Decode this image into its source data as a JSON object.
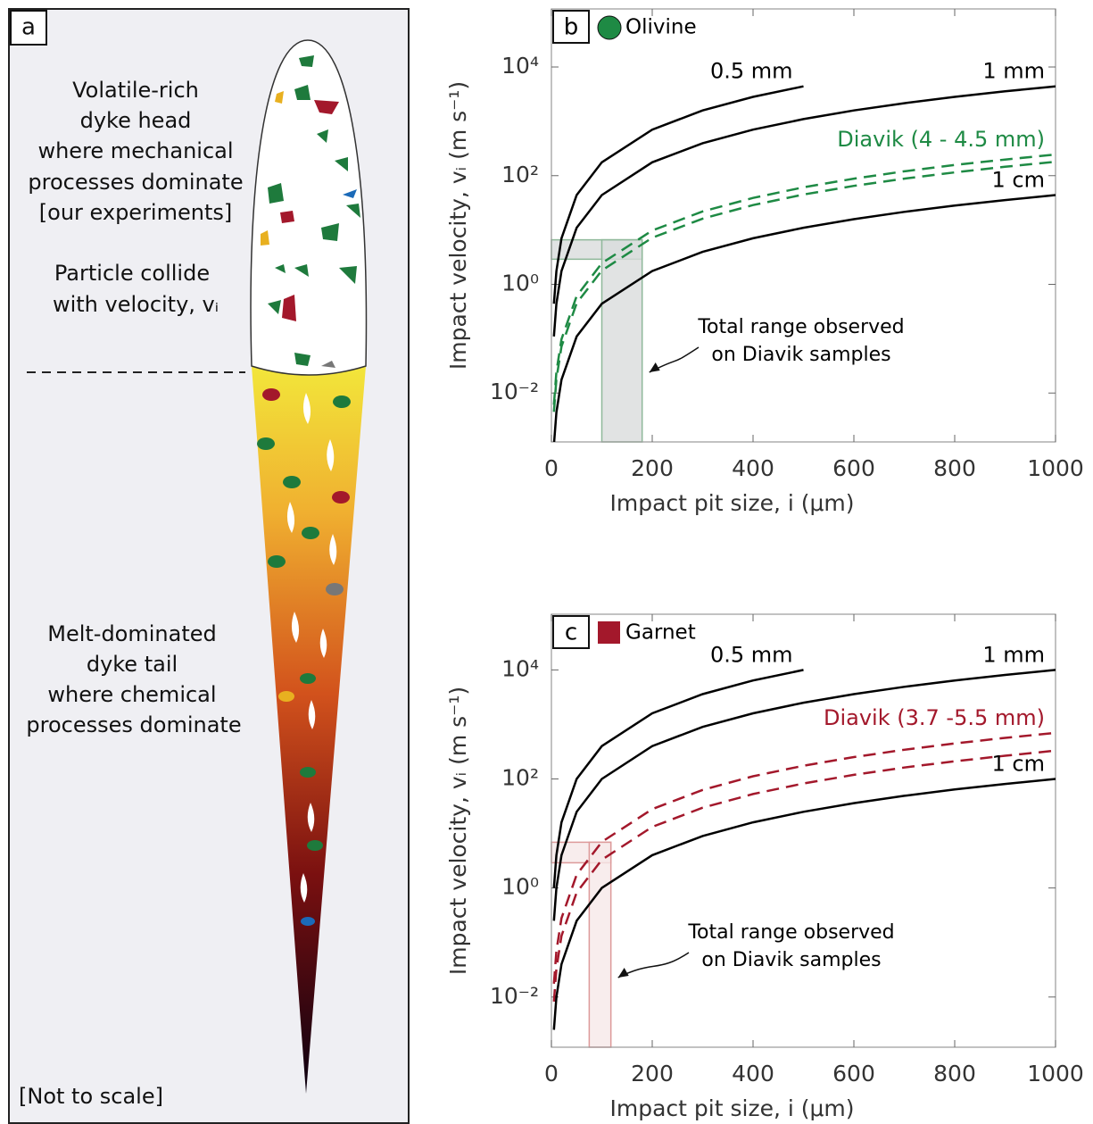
{
  "diagram": {
    "panel": "a",
    "head_text": [
      "Volatile-rich",
      "dyke head",
      "where mechanical",
      "processes dominate",
      "[our experiments]"
    ],
    "collide_text": [
      "Particle collide",
      "with velocity, vᵢ"
    ],
    "tail_text": [
      "Melt-dominated",
      "dyke tail",
      "where chemical",
      "processes dominate"
    ],
    "note": "[Not to scale]"
  },
  "chart_data": [
    {
      "type": "line",
      "panel": "b",
      "legend": {
        "name": "Olivine",
        "color": "#1e8a44",
        "marker": "circle"
      },
      "xlabel": "Impact pit size, i (μm)",
      "ylabel": "Impact velocity, vᵢ (m s⁻¹)",
      "ylog": true,
      "xlim": [
        0,
        1000
      ],
      "xticks": [
        0,
        200,
        400,
        600,
        800,
        1000
      ],
      "ylim": [
        0.00126,
        117000
      ],
      "yticks": [
        {
          "value": 0.01,
          "label": "10⁻²"
        },
        {
          "value": 1,
          "label": "10⁰"
        },
        {
          "value": 100,
          "label": "10²"
        },
        {
          "value": 10000,
          "label": "10⁴"
        }
      ],
      "x": [
        5,
        10,
        20,
        50,
        100,
        200,
        300,
        400,
        500,
        600,
        700,
        800,
        900,
        1000
      ],
      "series": [
        {
          "name": "0.5 mm",
          "color": "#000000",
          "values": [
            0.44,
            1.76,
            7.04,
            44,
            176,
            704,
            1584,
            2816,
            4400,
            null,
            null,
            null,
            null,
            null
          ]
        },
        {
          "name": "1 mm",
          "color": "#000000",
          "values": [
            0.11,
            0.44,
            1.76,
            11,
            44,
            176,
            396,
            704,
            1100,
            1584,
            2156,
            2816,
            3564,
            4400
          ]
        },
        {
          "name": "Diavik (4 - 4.5 mm)",
          "color": "#1e8a44",
          "dashed": true,
          "low": [
            0.0045,
            0.018,
            0.072,
            0.45,
            1.8,
            7.2,
            16.2,
            28.8,
            45,
            64.8,
            88.2,
            115,
            146,
            180
          ],
          "high": [
            0.0061,
            0.0245,
            0.098,
            0.61,
            2.45,
            9.8,
            22,
            39,
            61,
            88,
            120,
            157,
            198,
            245
          ]
        },
        {
          "name": "1 cm",
          "color": "#000000",
          "values": [
            0.0011,
            0.0044,
            0.0176,
            0.11,
            0.44,
            1.76,
            3.96,
            7.04,
            11,
            15.8,
            21.6,
            28.2,
            35.6,
            44
          ]
        }
      ],
      "shaded_range": {
        "x": [
          100,
          180
        ],
        "y": [
          2.9,
          6.6
        ],
        "fill": "#d9dcdc",
        "edge": "#8fb89a"
      },
      "annotation": [
        "Total range observed",
        "on Diavik samples"
      ]
    },
    {
      "type": "line",
      "panel": "c",
      "legend": {
        "name": "Garnet",
        "color": "#a3182b",
        "marker": "square"
      },
      "xlabel": "Impact pit size, i (μm)",
      "ylabel": "Impact velocity, vᵢ (m s⁻¹)",
      "ylog": true,
      "xlim": [
        0,
        1000
      ],
      "xticks": [
        0,
        200,
        400,
        600,
        800,
        1000
      ],
      "ylim": [
        0.0012,
        105000
      ],
      "yticks": [
        {
          "value": 0.01,
          "label": "10⁻²"
        },
        {
          "value": 1,
          "label": "10⁰"
        },
        {
          "value": 100,
          "label": "10²"
        },
        {
          "value": 10000,
          "label": "10⁴"
        }
      ],
      "x": [
        5,
        10,
        20,
        50,
        100,
        200,
        300,
        400,
        500,
        600,
        700,
        800,
        900,
        1000
      ],
      "series": [
        {
          "name": "0.5 mm",
          "color": "#000000",
          "values": [
            1,
            4,
            16,
            100,
            400,
            1600,
            3600,
            6400,
            10000,
            null,
            null,
            null,
            null,
            null
          ]
        },
        {
          "name": "1 mm",
          "color": "#000000",
          "values": [
            0.25,
            1,
            4,
            25,
            100,
            400,
            900,
            1600,
            2500,
            3600,
            4900,
            6400,
            8100,
            10000
          ]
        },
        {
          "name": "Diavik (3.7 -5.5 mm)",
          "color": "#a3182b",
          "dashed": true,
          "low": [
            0.00825,
            0.033,
            0.132,
            0.825,
            3.3,
            13.2,
            29.7,
            52.8,
            82.5,
            119,
            162,
            211,
            267,
            330
          ],
          "high": [
            0.0175,
            0.07,
            0.28,
            1.75,
            7,
            28,
            63,
            112,
            175,
            252,
            343,
            448,
            567,
            700
          ]
        },
        {
          "name": "1 cm",
          "color": "#000000",
          "values": [
            0.0025,
            0.01,
            0.04,
            0.25,
            1,
            4,
            9,
            16,
            25,
            36,
            49,
            64,
            81,
            100
          ]
        }
      ],
      "shaded_range": {
        "x": [
          75,
          118
        ],
        "y": [
          2.9,
          6.9
        ],
        "fill": "#f6e9e9",
        "edge": "#dd9a9a"
      },
      "annotation": [
        "Total range observed",
        "on Diavik samples"
      ]
    }
  ]
}
